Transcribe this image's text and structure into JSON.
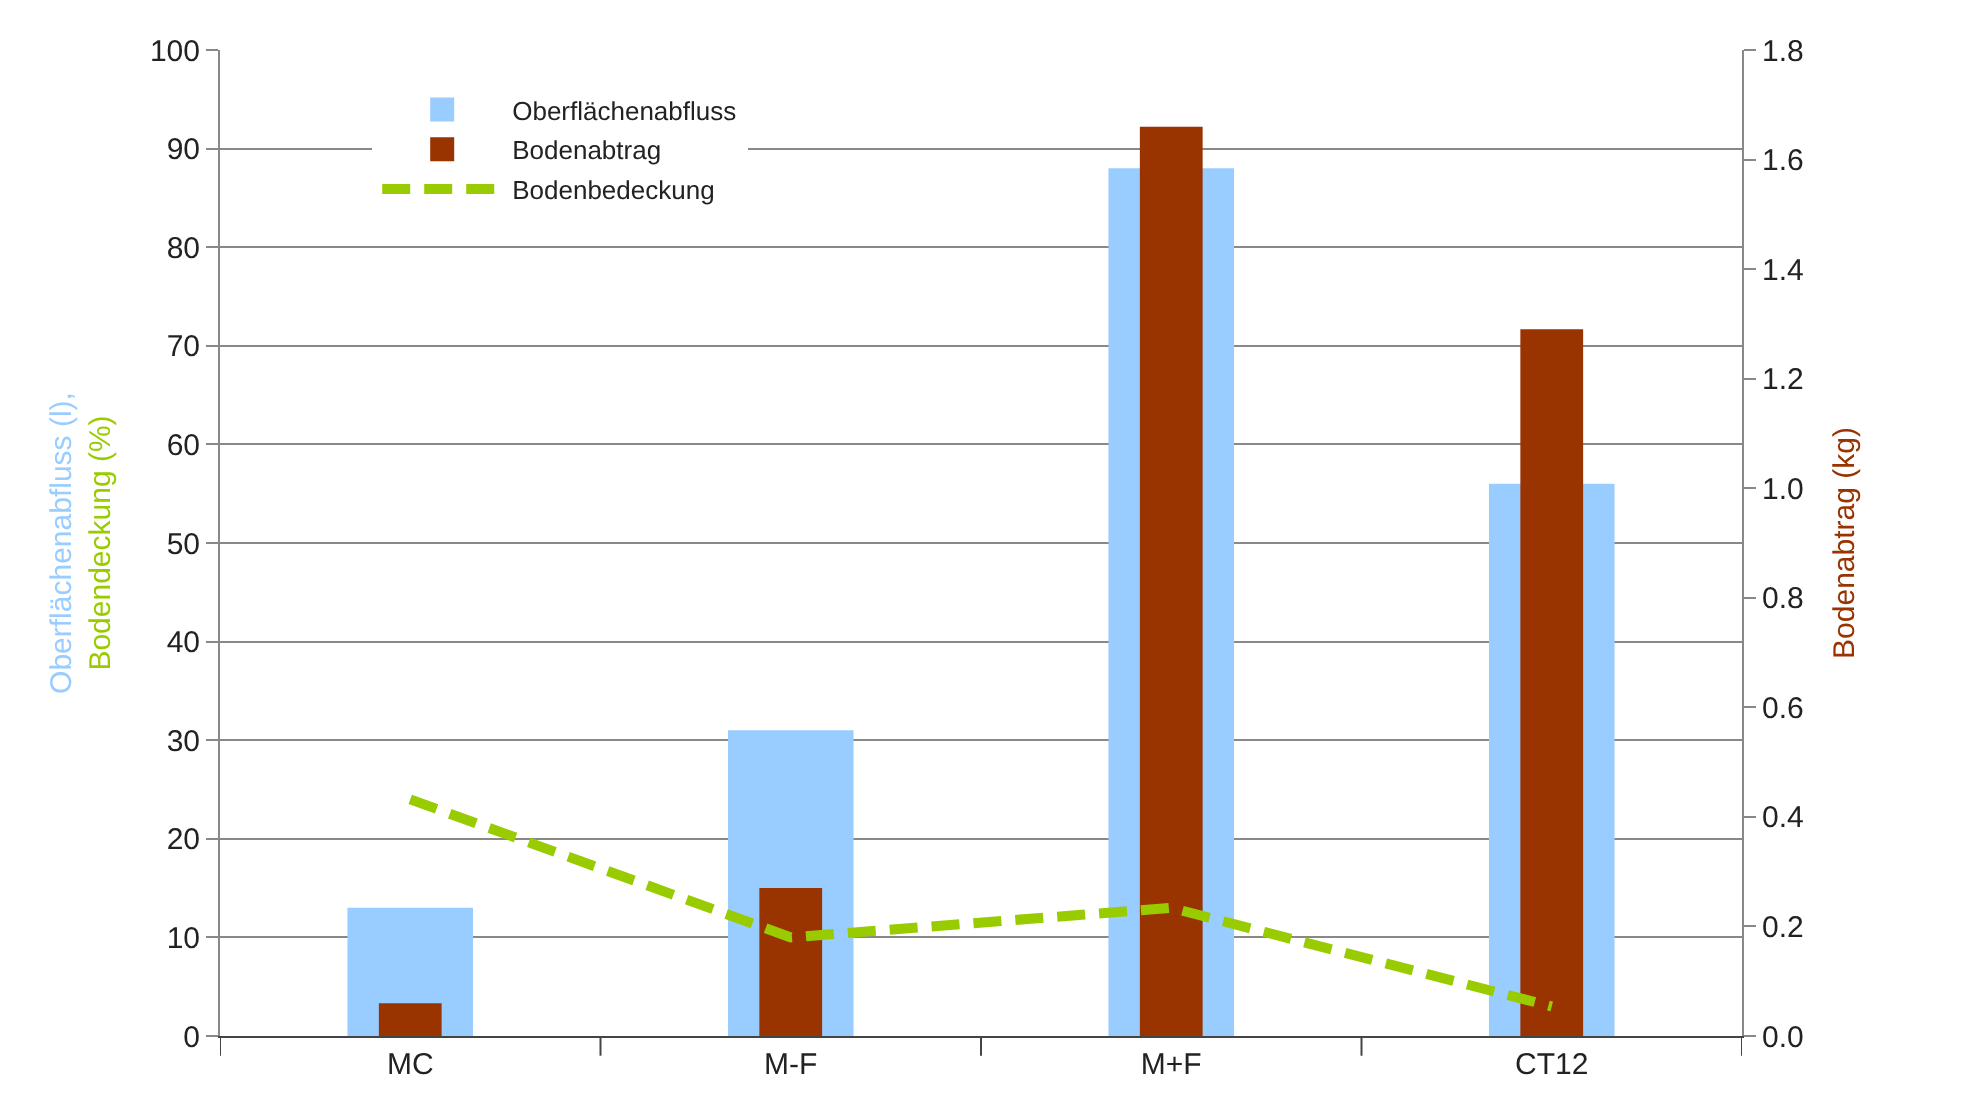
{
  "chart_data": {
    "type": "bar",
    "categories": [
      "MC",
      "M-F",
      "M+F",
      "CT12"
    ],
    "ylabel": "Oberflächenabfluss (l),\nBodendeckung (%)",
    "y2label": "Bodenabtrag (kg)",
    "series": [
      {
        "name": "Oberflächenabfluss",
        "color": "#99ccff",
        "values": [
          13,
          31,
          88,
          56
        ]
      },
      {
        "name": "Bodenabtrag",
        "color": "#993300",
        "values": [
          0.06,
          0.27,
          1.66,
          1.29
        ],
        "axis": "y2"
      },
      {
        "name": "Bodenbedeckung",
        "color": "#99cc00",
        "type": "line",
        "line_style": "dashed",
        "values": [
          24,
          10,
          13,
          3
        ]
      }
    ],
    "ylim": [
      0,
      100
    ],
    "yticks": [
      0,
      10,
      20,
      30,
      40,
      50,
      60,
      70,
      80,
      90,
      100
    ],
    "y2lim": [
      0,
      1.8
    ],
    "y2ticks": [
      {
        "value": 0,
        "label": "0.0"
      },
      0.2,
      0.4,
      0.6,
      0.8,
      {
        "value": 1,
        "label": "1.0"
      },
      1.2,
      1.4,
      1.6,
      1.8
    ],
    "grid": "y",
    "legend": "top left"
  }
}
